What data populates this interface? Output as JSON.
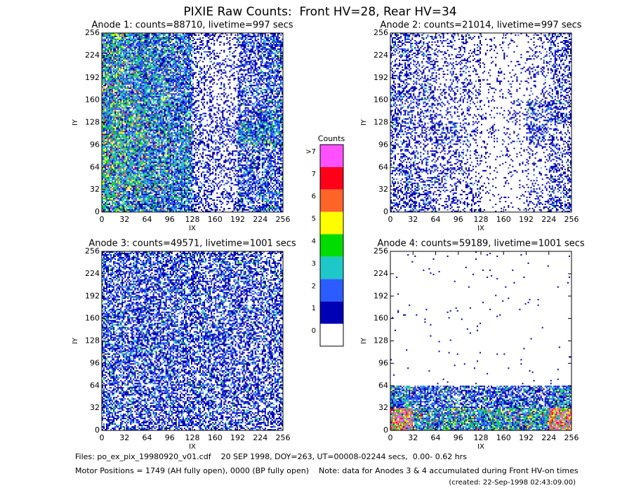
{
  "title": "PIXIE Raw Counts:  Front HV=28, Rear HV=34",
  "chart_data": [
    {
      "type": "heatmap",
      "title": "Anode 1: counts=88710, livetime=997 secs",
      "xlabel": "IX",
      "ylabel": "IY",
      "xlim": [
        0,
        256
      ],
      "ylim": [
        0,
        256
      ],
      "xticks": [
        0,
        32,
        64,
        96,
        128,
        160,
        192,
        224,
        256
      ],
      "yticks": [
        0,
        32,
        64,
        96,
        128,
        160,
        192,
        224,
        256
      ],
      "density": [
        [
          2.5,
          2.0,
          1.8,
          1.5,
          0.4,
          0.3,
          0.8,
          1.2
        ],
        [
          2.5,
          2.2,
          2.0,
          1.6,
          0.4,
          0.3,
          0.8,
          1.2
        ],
        [
          2.6,
          2.2,
          2.0,
          1.6,
          0.4,
          0.3,
          0.8,
          1.0
        ],
        [
          2.8,
          2.4,
          2.0,
          1.6,
          0.4,
          0.4,
          1.0,
          1.4
        ],
        [
          3.0,
          2.6,
          2.2,
          1.8,
          0.5,
          0.5,
          2.0,
          1.8
        ],
        [
          2.8,
          2.5,
          2.2,
          1.8,
          0.4,
          0.4,
          1.0,
          1.0
        ],
        [
          2.8,
          2.5,
          2.0,
          1.8,
          0.5,
          0.4,
          1.0,
          1.0
        ],
        [
          2.6,
          2.4,
          2.0,
          1.8,
          0.5,
          0.4,
          1.0,
          1.2
        ]
      ]
    },
    {
      "type": "heatmap",
      "title": "Anode 2: counts=21014, livetime=997 secs",
      "xlabel": "IX",
      "ylabel": "IY",
      "xlim": [
        0,
        256
      ],
      "ylim": [
        0,
        256
      ],
      "xticks": [
        0,
        32,
        64,
        96,
        128,
        160,
        192,
        224,
        256
      ],
      "yticks": [
        0,
        32,
        64,
        96,
        128,
        160,
        192,
        224,
        256
      ],
      "density": [
        [
          0.6,
          0.4,
          0.3,
          0.3,
          0.1,
          0.1,
          0.2,
          0.6
        ],
        [
          0.5,
          0.4,
          0.3,
          0.3,
          0.1,
          0.1,
          0.2,
          0.5
        ],
        [
          0.5,
          0.5,
          0.3,
          0.3,
          0.1,
          0.1,
          0.2,
          0.5
        ],
        [
          0.6,
          0.4,
          0.3,
          0.2,
          0.1,
          0.2,
          0.6,
          0.7
        ],
        [
          0.6,
          0.5,
          0.6,
          0.3,
          0.1,
          0.1,
          0.6,
          0.4
        ],
        [
          0.5,
          0.4,
          0.3,
          0.3,
          0.1,
          0.1,
          0.2,
          0.4
        ],
        [
          0.6,
          0.5,
          0.4,
          0.3,
          0.1,
          0.1,
          0.2,
          0.5
        ],
        [
          0.7,
          0.6,
          0.4,
          0.3,
          0.1,
          0.1,
          0.3,
          0.6
        ]
      ]
    },
    {
      "type": "heatmap",
      "title": "Anode 3: counts=49571, livetime=1001 secs",
      "xlabel": "IX",
      "ylabel": "IY",
      "xlim": [
        0,
        256
      ],
      "ylim": [
        0,
        256
      ],
      "xticks": [
        0,
        32,
        64,
        96,
        128,
        160,
        192,
        224,
        256
      ],
      "yticks": [
        0,
        32,
        64,
        96,
        128,
        160,
        192,
        224,
        256
      ],
      "density": [
        [
          1.0,
          0.9,
          0.9,
          0.9,
          0.8,
          0.8,
          0.8,
          0.7
        ],
        [
          1.0,
          0.9,
          0.9,
          1.0,
          0.9,
          0.8,
          0.8,
          0.8
        ],
        [
          1.0,
          0.9,
          0.9,
          0.9,
          0.9,
          0.9,
          0.8,
          0.8
        ],
        [
          1.0,
          0.9,
          0.9,
          1.0,
          0.9,
          0.9,
          0.8,
          0.8
        ],
        [
          1.0,
          1.0,
          0.9,
          1.0,
          0.9,
          0.9,
          0.8,
          0.8
        ],
        [
          1.0,
          0.9,
          0.9,
          0.9,
          0.9,
          0.8,
          0.8,
          0.8
        ],
        [
          1.0,
          0.9,
          0.9,
          0.9,
          0.9,
          0.8,
          0.8,
          0.8
        ],
        [
          0.9,
          0.9,
          0.8,
          0.9,
          0.8,
          0.8,
          0.8,
          0.7
        ]
      ]
    },
    {
      "type": "heatmap",
      "title": "Anode 4: counts=59189, livetime=1001 secs",
      "xlabel": "IX",
      "ylabel": "IY",
      "xlim": [
        0,
        256
      ],
      "ylim": [
        0,
        256
      ],
      "xticks": [
        0,
        32,
        64,
        96,
        128,
        160,
        192,
        224,
        256
      ],
      "yticks": [
        0,
        32,
        64,
        96,
        128,
        160,
        192,
        224,
        256
      ],
      "density": [
        [
          0.01,
          0.01,
          0.01,
          0.01,
          0.01,
          0.01,
          0.01,
          0.01
        ],
        [
          0.01,
          0.01,
          0.01,
          0.01,
          0.01,
          0.01,
          0.01,
          0.01
        ],
        [
          0.01,
          0.01,
          0.01,
          0.01,
          0.01,
          0.01,
          0.01,
          0.01
        ],
        [
          0.01,
          0.01,
          0.01,
          0.01,
          0.01,
          0.01,
          0.01,
          0.01
        ],
        [
          0.01,
          0.01,
          0.01,
          0.01,
          0.01,
          0.01,
          0.01,
          0.01
        ],
        [
          0.01,
          0.01,
          0.01,
          0.01,
          0.01,
          0.01,
          0.01,
          0.01
        ],
        [
          2.0,
          1.2,
          1.2,
          1.2,
          1.2,
          1.2,
          1.2,
          2.0
        ],
        [
          6.0,
          2.5,
          2.5,
          2.5,
          2.5,
          2.5,
          2.5,
          6.0
        ]
      ]
    }
  ],
  "colorbar": {
    "title": "Counts",
    "labels": [
      0,
      1,
      2,
      3,
      4,
      5,
      6,
      7,
      ">7"
    ],
    "colors": [
      "#ffffff",
      "#0000b4",
      "#2a5cff",
      "#1ec8c8",
      "#00dc00",
      "#ffff00",
      "#ff6428",
      "#ff0018",
      "#ff50ff"
    ]
  },
  "footer": {
    "files": "Files: po_ex_pix_19980920_v01.cdf    20 SEP 1998, DOY=263, UT=00008-02244 secs,  0.00- 0.62 hrs",
    "motor": "Motor Positions = 1749 (AH fully open), 0000 (BP fully open)    Note: data for Anodes 3 & 4 accumulated during Front HV-on times",
    "created": "(created: 22-Sep-1998 02:43:09.00)"
  }
}
